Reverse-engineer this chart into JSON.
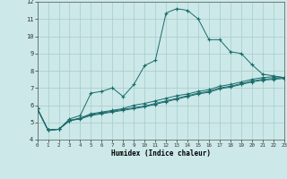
{
  "xlabel": "Humidex (Indice chaleur)",
  "ylabel": "",
  "xlim": [
    0,
    23
  ],
  "ylim": [
    4,
    12
  ],
  "xticks": [
    0,
    1,
    2,
    3,
    4,
    5,
    6,
    7,
    8,
    9,
    10,
    11,
    12,
    13,
    14,
    15,
    16,
    17,
    18,
    19,
    20,
    21,
    22,
    23
  ],
  "yticks": [
    4,
    5,
    6,
    7,
    8,
    9,
    10,
    11,
    12
  ],
  "bg_color": "#cce8e8",
  "grid_color": "#b0d0d0",
  "line_color": "#1a6b6b",
  "series": [
    {
      "x": [
        0,
        1,
        2,
        3,
        4,
        5,
        6,
        7,
        8,
        9,
        10,
        11,
        12,
        13,
        14,
        15,
        16,
        17,
        18,
        19,
        20,
        21,
        22,
        23
      ],
      "y": [
        5.8,
        4.55,
        4.6,
        5.2,
        5.4,
        6.7,
        6.8,
        7.0,
        6.5,
        7.2,
        8.3,
        8.6,
        11.35,
        11.6,
        11.5,
        11.0,
        9.8,
        9.8,
        9.1,
        9.0,
        8.35,
        7.8,
        7.7,
        7.6
      ]
    },
    {
      "x": [
        0,
        1,
        2,
        3,
        4,
        5,
        6,
        7,
        8,
        9,
        10,
        11,
        12,
        13,
        14,
        15,
        16,
        17,
        18,
        19,
        20,
        21,
        22,
        23
      ],
      "y": [
        5.8,
        4.55,
        4.6,
        5.1,
        5.25,
        5.5,
        5.6,
        5.7,
        5.8,
        6.0,
        6.1,
        6.25,
        6.4,
        6.55,
        6.65,
        6.8,
        6.9,
        7.1,
        7.2,
        7.35,
        7.5,
        7.6,
        7.65,
        7.6
      ]
    },
    {
      "x": [
        0,
        1,
        2,
        3,
        4,
        5,
        6,
        7,
        8,
        9,
        10,
        11,
        12,
        13,
        14,
        15,
        16,
        17,
        18,
        19,
        20,
        21,
        22,
        23
      ],
      "y": [
        5.8,
        4.55,
        4.6,
        5.1,
        5.25,
        5.45,
        5.55,
        5.65,
        5.75,
        5.85,
        5.95,
        6.1,
        6.25,
        6.4,
        6.55,
        6.7,
        6.8,
        7.0,
        7.1,
        7.25,
        7.4,
        7.5,
        7.55,
        7.6
      ]
    },
    {
      "x": [
        0,
        1,
        2,
        3,
        4,
        5,
        6,
        7,
        8,
        9,
        10,
        11,
        12,
        13,
        14,
        15,
        16,
        17,
        18,
        19,
        20,
        21,
        22,
        23
      ],
      "y": [
        5.8,
        4.55,
        4.6,
        5.1,
        5.2,
        5.4,
        5.5,
        5.6,
        5.7,
        5.8,
        5.9,
        6.05,
        6.2,
        6.35,
        6.5,
        6.65,
        6.75,
        6.95,
        7.05,
        7.2,
        7.35,
        7.45,
        7.5,
        7.55
      ]
    }
  ]
}
